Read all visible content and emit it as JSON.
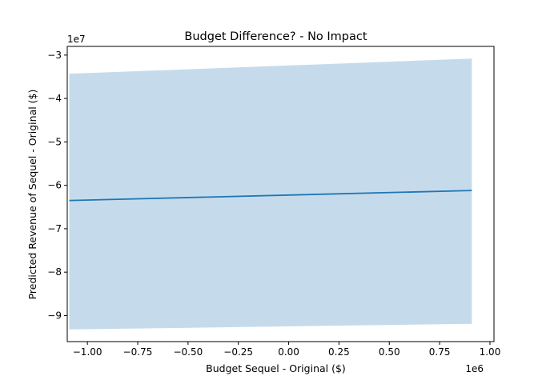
{
  "chart_data": {
    "type": "area",
    "title": "Budget Difference? - No Impact",
    "xlabel": "Budget Sequel - Original ($)",
    "ylabel": "Predicted Revenue of Sequel - Original ($)",
    "x_offset_label": "1e6",
    "y_offset_label": "1e7",
    "xlim": [
      -1.1,
      1.02
    ],
    "ylim": [
      -9.6,
      -2.8
    ],
    "xticks": [
      "−1.00",
      "−0.75",
      "−0.50",
      "−0.25",
      "0.00",
      "0.25",
      "0.50",
      "0.75",
      "1.00"
    ],
    "yticks": [
      "−9",
      "−8",
      "−7",
      "−6",
      "−5",
      "−4",
      "−3"
    ],
    "grid": false,
    "series": [
      {
        "kind": "line",
        "color": "#1f77b4",
        "x": [
          -1.09,
          0.91
        ],
        "y": [
          -6.35,
          -6.12
        ]
      },
      {
        "kind": "band",
        "color": "#c5dbec",
        "x": [
          -1.09,
          0.91
        ],
        "upper": [
          -3.43,
          -3.08
        ],
        "lower": [
          -9.32,
          -9.19
        ]
      }
    ]
  }
}
